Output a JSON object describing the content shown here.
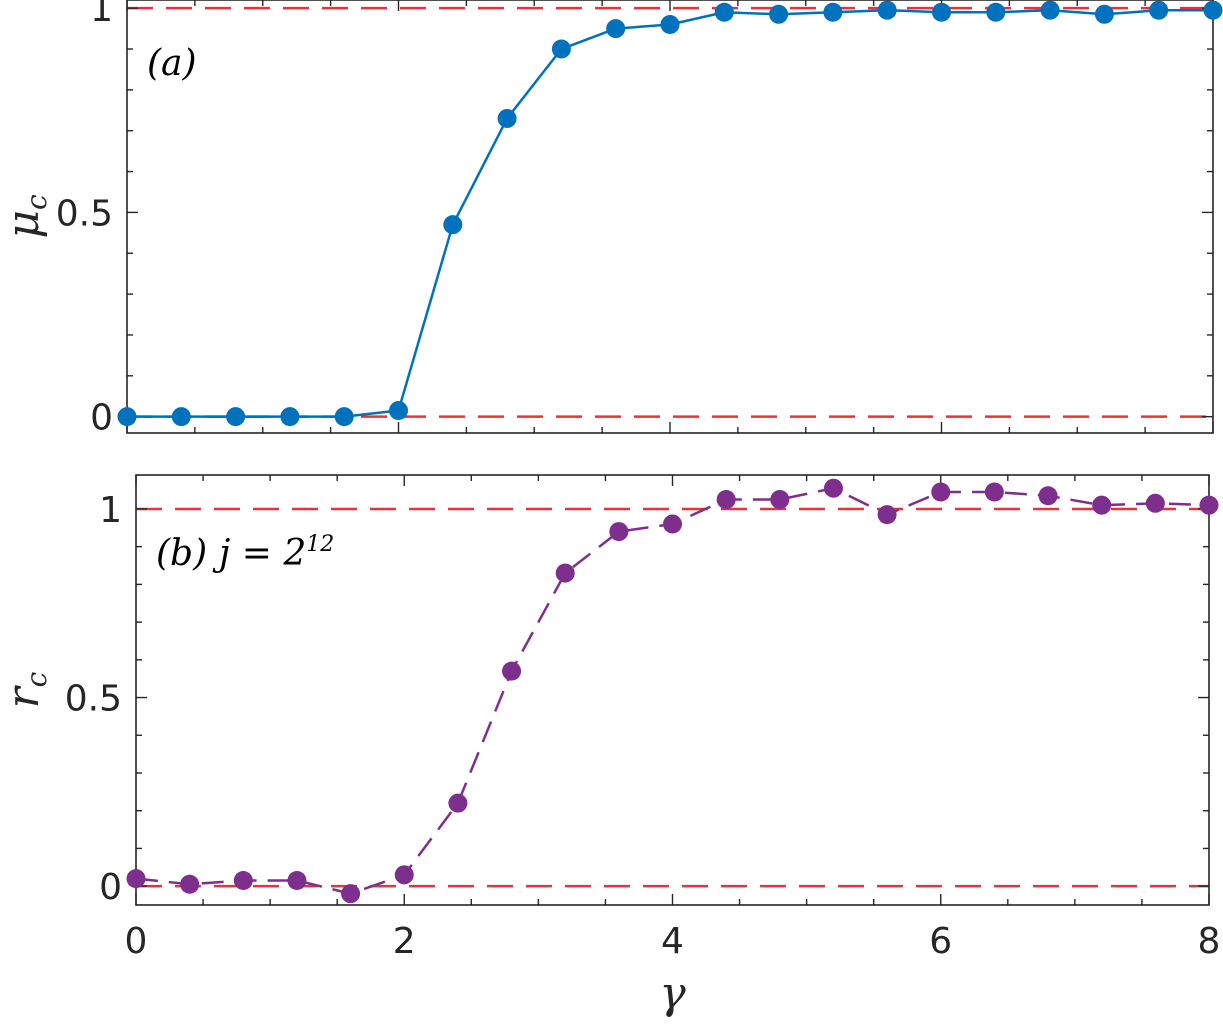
{
  "chart_data": [
    {
      "type": "line",
      "panel": "a",
      "annotation": "(a)",
      "xlabel": "",
      "ylabel": "μ",
      "ylabel_sub": "c",
      "xlim": [
        0,
        8
      ],
      "ylim": [
        -0.04,
        1.02
      ],
      "yticks": [
        0,
        0.5,
        1
      ],
      "ytick_labels": [
        "0",
        "0.5",
        "1"
      ],
      "xticks": [
        0,
        2,
        4,
        6,
        8
      ],
      "xtick_labels": [
        "",
        "",
        "",
        "",
        ""
      ],
      "reference_lines": [
        0,
        1
      ],
      "series": [
        {
          "color": "#0072bd",
          "linestyle": "solid",
          "marker": "circle",
          "x": [
            0,
            0.4,
            0.8,
            1.2,
            1.6,
            2.0,
            2.4,
            2.8,
            3.2,
            3.6,
            4.0,
            4.4,
            4.8,
            5.2,
            5.6,
            6.0,
            6.4,
            6.8,
            7.2,
            7.6,
            8.0
          ],
          "y": [
            0.0,
            0.0,
            0.0,
            0.0,
            0.0,
            0.015,
            0.47,
            0.73,
            0.9,
            0.95,
            0.96,
            0.99,
            0.985,
            0.99,
            0.995,
            0.99,
            0.99,
            0.995,
            0.985,
            0.995,
            0.995
          ]
        }
      ]
    },
    {
      "type": "line",
      "panel": "b",
      "annotation": "(b)",
      "annotation_eq": "j = 2",
      "annotation_exp": "12",
      "xlabel": "γ",
      "ylabel": "r",
      "ylabel_sub": "c",
      "xlim": [
        0,
        8
      ],
      "ylim": [
        -0.05,
        1.09
      ],
      "yticks": [
        0,
        0.5,
        1
      ],
      "ytick_labels": [
        "0",
        "0.5",
        "1"
      ],
      "xticks": [
        0,
        2,
        4,
        6,
        8
      ],
      "xtick_labels": [
        "0",
        "2",
        "4",
        "6",
        "8"
      ],
      "reference_lines": [
        0,
        1
      ],
      "series": [
        {
          "color": "#7e2f8e",
          "linestyle": "dashed",
          "marker": "circle",
          "x": [
            0,
            0.4,
            0.8,
            1.2,
            1.6,
            2.0,
            2.4,
            2.8,
            3.2,
            3.6,
            4.0,
            4.4,
            4.8,
            5.2,
            5.6,
            6.0,
            6.4,
            6.8,
            7.2,
            7.6,
            8.0
          ],
          "y": [
            0.02,
            0.005,
            0.015,
            0.015,
            -0.02,
            0.03,
            0.22,
            0.57,
            0.83,
            0.94,
            0.96,
            1.025,
            1.025,
            1.055,
            0.985,
            1.045,
            1.045,
            1.035,
            1.01,
            1.015,
            1.01
          ]
        }
      ]
    }
  ],
  "colors": {
    "reference_line": "#e8333a",
    "axis": "#262626",
    "grid": "off"
  }
}
